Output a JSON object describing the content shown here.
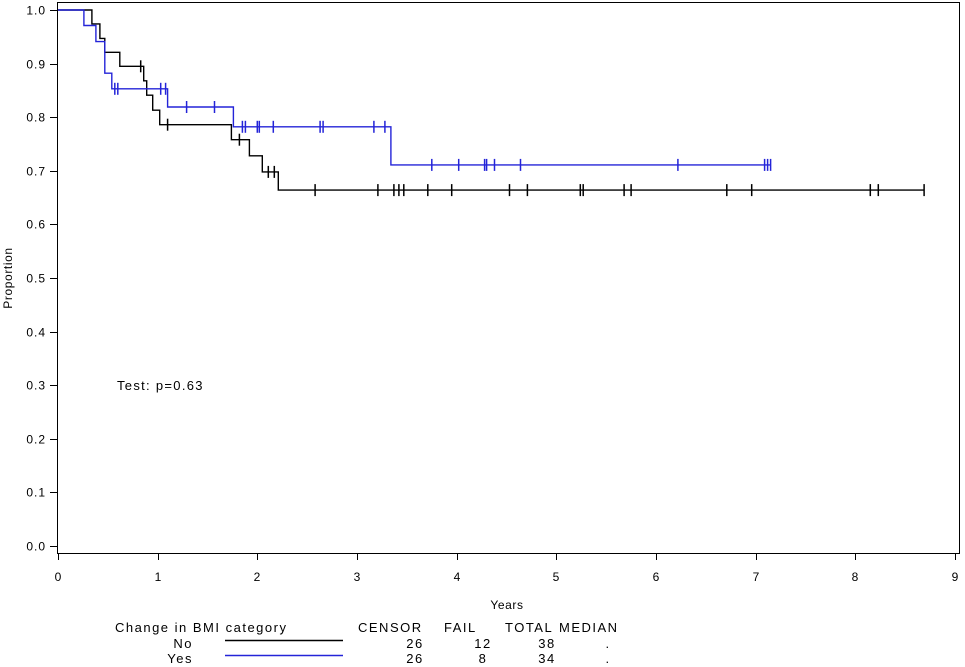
{
  "chart_data": {
    "type": "line",
    "step": true,
    "xlabel": "Years",
    "ylabel": "Proportion",
    "xlim": [
      0,
      9
    ],
    "ylim": [
      0,
      1
    ],
    "x_ticks": [
      "0",
      "1",
      "2",
      "3",
      "4",
      "5",
      "6",
      "7",
      "8",
      "9"
    ],
    "y_ticks": [
      "0.0",
      "0.1",
      "0.2",
      "0.3",
      "0.4",
      "0.5",
      "0.6",
      "0.7",
      "0.8",
      "0.9",
      "1.0"
    ],
    "grid": false,
    "annotation": "Test: p=0.63",
    "legend_placement": "bottom",
    "series": [
      {
        "name": "No",
        "color": "#000000",
        "x": [
          0,
          0.34,
          0.42,
          0.47,
          0.62,
          0.86,
          0.89,
          0.95,
          1.02,
          1.74,
          1.92,
          2.05,
          2.21
        ],
        "y": [
          1.0,
          0.974,
          0.947,
          0.921,
          0.895,
          0.868,
          0.841,
          0.813,
          0.786,
          0.758,
          0.728,
          0.698,
          0.664
        ],
        "censored_x": [
          0.83,
          1.1,
          1.82,
          2.11,
          2.17,
          2.58,
          3.21,
          3.37,
          3.42,
          3.47,
          3.71,
          3.95,
          4.53,
          4.71,
          5.24,
          5.27,
          5.68,
          5.75,
          6.71,
          6.96,
          8.15,
          8.23,
          8.69
        ]
      },
      {
        "name": "Yes",
        "color": "#2424d8",
        "x": [
          0,
          0.26,
          0.38,
          0.47,
          0.54,
          1.1,
          1.76,
          3.34
        ],
        "y": [
          1.0,
          0.971,
          0.941,
          0.882,
          0.853,
          0.819,
          0.782,
          0.711
        ],
        "censored_x": [
          0.57,
          0.6,
          1.03,
          1.08,
          1.29,
          1.57,
          1.85,
          1.88,
          2.0,
          2.02,
          2.16,
          2.63,
          2.66,
          3.17,
          3.28,
          3.75,
          4.02,
          4.28,
          4.3,
          4.38,
          4.64,
          6.22,
          7.09,
          7.12,
          7.15
        ]
      }
    ],
    "legend": {
      "title": "Change in BMI category",
      "columns": [
        "CENSOR",
        "FAIL",
        "TOTAL",
        "MEDIAN"
      ],
      "rows": [
        {
          "censor": 26,
          "fail": 12,
          "total": 38,
          "median": "."
        },
        {
          "censor": 26,
          "fail": 8,
          "total": 34,
          "median": "."
        }
      ]
    }
  }
}
